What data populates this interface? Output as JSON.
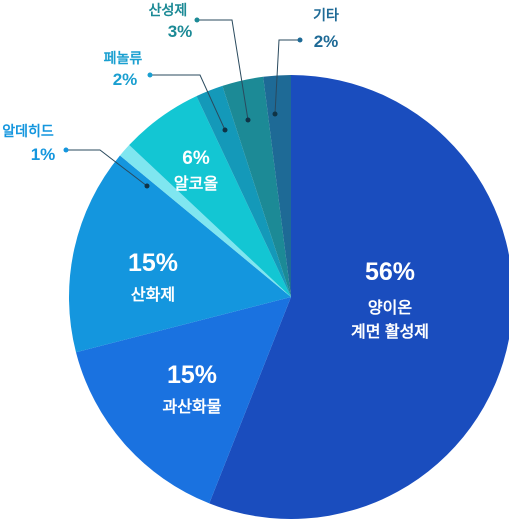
{
  "chart_data": {
    "type": "pie",
    "title": "",
    "slices": [
      {
        "label": "양이온 계면 활성제",
        "label_lines": [
          "양이온",
          "계면 활성제"
        ],
        "value": 56,
        "display": "56%",
        "color": "#1a4dbe",
        "label_position": "inside"
      },
      {
        "label": "과산화물",
        "label_lines": [
          "과산화물"
        ],
        "value": 15,
        "display": "15%",
        "color": "#1a72e0",
        "label_position": "inside"
      },
      {
        "label": "산화제",
        "label_lines": [
          "산화제"
        ],
        "value": 15,
        "display": "15%",
        "color": "#1496de",
        "label_position": "inside"
      },
      {
        "label": "알데히드",
        "label_lines": [
          "알데히드"
        ],
        "value": 1,
        "display": "1%",
        "color": "#7fe6f0",
        "label_position": "outside",
        "text_color": "#1496de"
      },
      {
        "label": "알코올",
        "label_lines": [
          "알코올"
        ],
        "value": 6,
        "display": "6%",
        "color": "#13c6d3",
        "label_position": "inside"
      },
      {
        "label": "페놀류",
        "label_lines": [
          "페놀류"
        ],
        "value": 2,
        "display": "2%",
        "color": "#1499b9",
        "label_position": "outside",
        "text_color": "#1a9fd0"
      },
      {
        "label": "산성제",
        "label_lines": [
          "산성제"
        ],
        "value": 3,
        "display": "3%",
        "color": "#1c8a96",
        "label_position": "outside",
        "text_color": "#1c8a96"
      },
      {
        "label": "기타",
        "label_lines": [
          "기타"
        ],
        "value": 2,
        "display": "2%",
        "color": "#1e6a96",
        "label_position": "outside",
        "text_color": "#1e6a96"
      }
    ]
  }
}
